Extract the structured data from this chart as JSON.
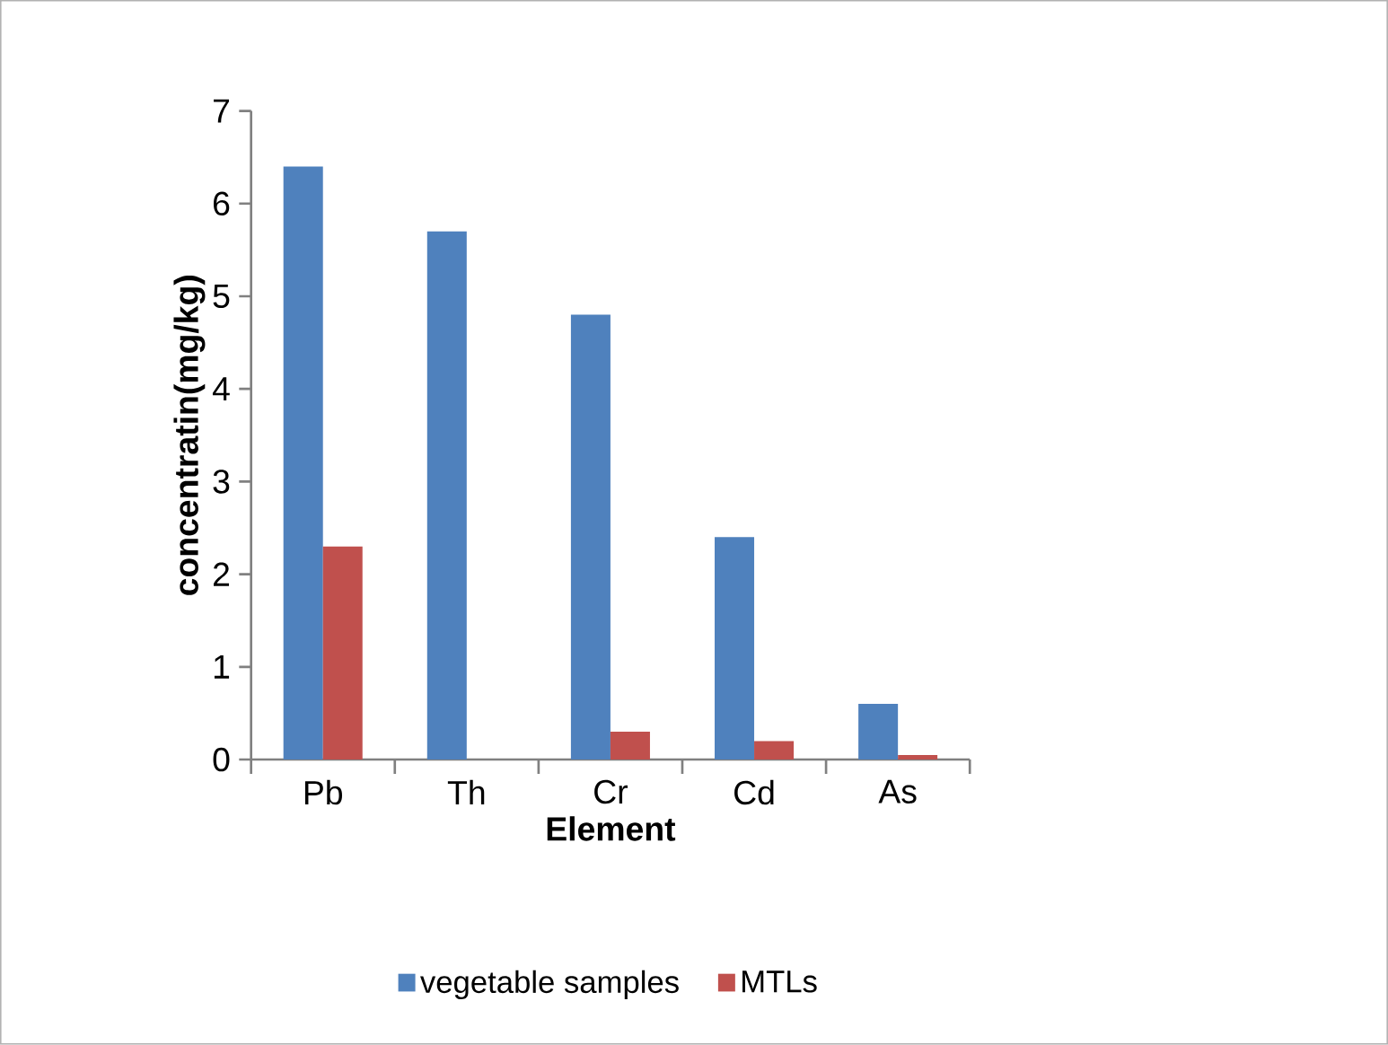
{
  "chart_data": {
    "type": "bar",
    "xlabel": "Element",
    "ylabel": "concentratin(mg/kg)",
    "categories": [
      "Pb",
      "Th",
      "Cr",
      "Cd",
      "As"
    ],
    "series": [
      {
        "name": "vegetable samples",
        "color": "#4f81bd",
        "values": [
          6.4,
          5.7,
          4.8,
          2.4,
          0.6
        ]
      },
      {
        "name": "MTLs",
        "color": "#c0504d",
        "values": [
          2.3,
          null,
          0.3,
          0.2,
          0.05
        ]
      }
    ],
    "ylim": [
      0,
      7
    ],
    "yticks": [
      0,
      1,
      2,
      3,
      4,
      5,
      6,
      7
    ],
    "legend": "bottom"
  }
}
